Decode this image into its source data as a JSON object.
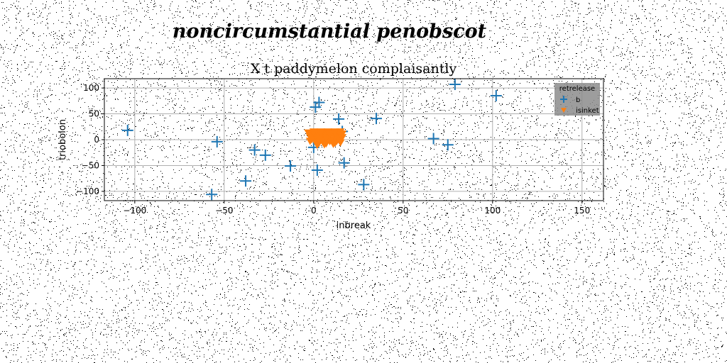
{
  "suptitle": "noncircumstantial penobscot",
  "chart_data": {
    "type": "scatter",
    "title": "X t paddymelon complaisantly",
    "xlabel": "inbreak",
    "ylabel": "triobolon",
    "xlim": [
      -117,
      162
    ],
    "ylim": [
      -118,
      118
    ],
    "xticks": [
      -100,
      -50,
      0,
      50,
      100,
      150
    ],
    "yticks": [
      -100,
      -50,
      0,
      50,
      100
    ],
    "grid": true,
    "legend": {
      "title": "retrelease",
      "placement": "top-right"
    },
    "series": [
      {
        "name": "b",
        "marker": "plus",
        "color": "#1f77b4",
        "points": [
          [
            -104,
            18
          ],
          [
            -54,
            -4
          ],
          [
            -57,
            -106
          ],
          [
            -38,
            -80
          ],
          [
            -33,
            -20
          ],
          [
            -27,
            -30
          ],
          [
            -13,
            -51
          ],
          [
            0,
            -15
          ],
          [
            1,
            63
          ],
          [
            3,
            72
          ],
          [
            2,
            -59
          ],
          [
            14,
            40
          ],
          [
            16,
            16
          ],
          [
            17,
            -45
          ],
          [
            28,
            -87
          ],
          [
            35,
            41
          ],
          [
            67,
            2
          ],
          [
            75,
            -10
          ],
          [
            79,
            107
          ],
          [
            102,
            85
          ]
        ]
      },
      {
        "name": "isinket",
        "marker": "triangle-down",
        "color": "#ff7f0e",
        "points": [
          [
            -3,
            14
          ],
          [
            -2,
            6
          ],
          [
            -1,
            10
          ],
          [
            -1,
            1
          ],
          [
            0,
            12
          ],
          [
            0,
            3
          ],
          [
            1,
            -2
          ],
          [
            1,
            8
          ],
          [
            2,
            15
          ],
          [
            2,
            4
          ],
          [
            3,
            -6
          ],
          [
            3,
            10
          ],
          [
            4,
            2
          ],
          [
            4,
            12
          ],
          [
            5,
            6
          ],
          [
            5,
            -4
          ],
          [
            6,
            14
          ],
          [
            6,
            0
          ],
          [
            7,
            9
          ],
          [
            7,
            -7
          ],
          [
            8,
            3
          ],
          [
            8,
            13
          ],
          [
            9,
            -3
          ],
          [
            9,
            7
          ],
          [
            10,
            15
          ],
          [
            10,
            0
          ],
          [
            11,
            10
          ],
          [
            11,
            -8
          ],
          [
            12,
            4
          ],
          [
            12,
            13
          ],
          [
            13,
            -2
          ],
          [
            13,
            8
          ],
          [
            14,
            15
          ],
          [
            14,
            1
          ],
          [
            15,
            10
          ],
          [
            15,
            -5
          ],
          [
            16,
            5
          ],
          [
            16,
            12
          ],
          [
            2,
            -10
          ],
          [
            6,
            -9
          ],
          [
            12,
            -6
          ],
          [
            -2,
            -2
          ],
          [
            0,
            16
          ],
          [
            4,
            16
          ],
          [
            8,
            16
          ],
          [
            12,
            16
          ],
          [
            15,
            16
          ],
          [
            7,
            4
          ],
          [
            9,
            11
          ],
          [
            3,
            1
          ]
        ]
      }
    ]
  }
}
